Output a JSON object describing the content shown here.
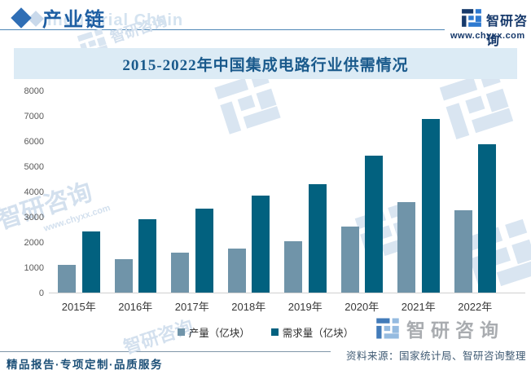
{
  "header": {
    "section_title": "产业链",
    "section_title_en": "Industrial Chain"
  },
  "brand": {
    "name": "智研咨询",
    "url": "www.chyxx.com"
  },
  "chart_data": {
    "type": "bar",
    "title": "2015-2022年中国集成电路行业供需情况",
    "categories": [
      "2015年",
      "2016年",
      "2017年",
      "2018年",
      "2019年",
      "2020年",
      "2021年",
      "2022年"
    ],
    "series": [
      {
        "name": "产量（亿块）",
        "key": "production",
        "color": "#7094a9",
        "values": [
          1087,
          1318,
          1565,
          1740,
          2018,
          2613,
          3594,
          3242
        ]
      },
      {
        "name": "需求量（亿块）",
        "key": "demand",
        "color": "#02617f",
        "values": [
          2411,
          2909,
          3334,
          3852,
          4284,
          5435,
          6856,
          5874
        ]
      }
    ],
    "xlabel": "",
    "ylabel": "",
    "ylim": [
      0,
      8000
    ],
    "ytick_labels": [
      "0",
      "1000",
      "2000",
      "3000",
      "4000",
      "5000",
      "6000",
      "7000",
      "8000"
    ],
    "grid": false,
    "legend_position": "bottom"
  },
  "footer": {
    "left": "精品报告·专项定制·品质服务",
    "source": "资料来源：国家统计局、智研咨询整理"
  },
  "watermark": {
    "text": "智研咨询",
    "url": "www.chyxx.com"
  },
  "colors": {
    "brand-navy": "#16396b",
    "brand-blue": "#2e7ad1",
    "header-blue": "#1e5fa3",
    "diamond-blue": "#2f6eb5",
    "diamond-light": "#c9d9eb",
    "title-blue": "#1a5a8c",
    "band-bg": "#dcebf5",
    "bar-light": "#7094a9",
    "bar-dark": "#02617f",
    "axis-text": "#595959",
    "footer-blue": "#1d5078"
  }
}
